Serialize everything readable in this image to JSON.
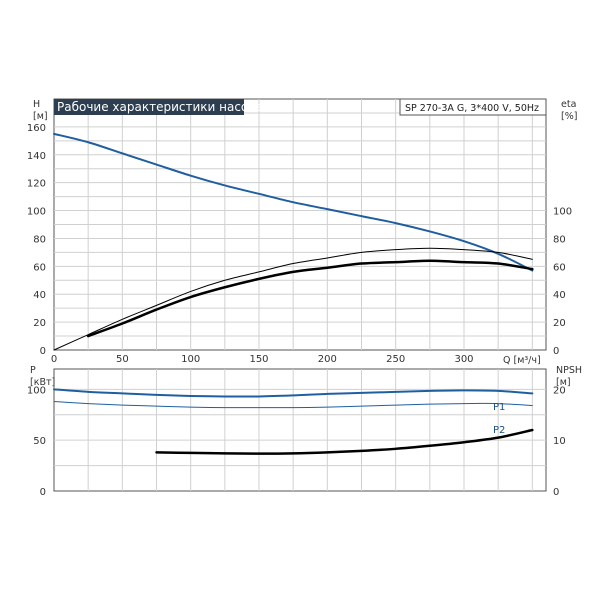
{
  "chart_data": [
    {
      "type": "line",
      "title": "Рабочие характеристики насоса",
      "subtitle": "SP 270-3A G, 3*400 V, 50Hz",
      "xlabel": "Q [м³/ч]",
      "ylabel": "H\n[м]",
      "y2label": "eta\n[%]",
      "xlim": [
        0,
        360
      ],
      "ylim": [
        0,
        180
      ],
      "y2lim": [
        0,
        180
      ],
      "x_ticks": [
        0,
        50,
        100,
        150,
        200,
        250,
        300
      ],
      "y_ticks": [
        0,
        20,
        40,
        60,
        80,
        100,
        120,
        140,
        160
      ],
      "y2_ticks": [
        0,
        20,
        40,
        60,
        80,
        100
      ],
      "grid": true,
      "series": [
        {
          "axis": "left",
          "color": "#1f5fa0",
          "width": 2,
          "x": [
            0,
            25,
            50,
            75,
            100,
            125,
            150,
            175,
            200,
            225,
            250,
            275,
            300,
            325,
            350
          ],
          "y": [
            155,
            149,
            141,
            133,
            125,
            118,
            112,
            106,
            101,
            96,
            91,
            85,
            78,
            69,
            57
          ]
        },
        {
          "axis": "right",
          "color": "#000000",
          "width": 1,
          "x": [
            0,
            25,
            50,
            75,
            100,
            125,
            150,
            175,
            200,
            225,
            250,
            275,
            300,
            325,
            350
          ],
          "y": [
            0,
            11,
            22,
            32,
            42,
            50,
            56,
            62,
            66,
            70,
            72,
            73,
            72,
            70,
            65
          ]
        },
        {
          "axis": "right",
          "color": "#000000",
          "width": 2.5,
          "x": [
            25,
            50,
            75,
            100,
            125,
            150,
            175,
            200,
            225,
            250,
            275,
            300,
            325,
            350
          ],
          "y": [
            10,
            19,
            29,
            38,
            45,
            51,
            56,
            59,
            62,
            63,
            64,
            63,
            62,
            58
          ]
        }
      ]
    },
    {
      "type": "line",
      "xlim": [
        0,
        360
      ],
      "ylabel": "P\n[кВт]",
      "y2label": "NPSH\n[м]",
      "ylim": [
        0,
        120
      ],
      "y2lim": [
        0,
        24
      ],
      "y_ticks": [
        0,
        50,
        100
      ],
      "y2_ticks": [
        0,
        10,
        20
      ],
      "grid": true,
      "series": [
        {
          "name": "P1",
          "axis": "left",
          "color": "#1f5fa0",
          "width": 2,
          "x": [
            0,
            25,
            50,
            75,
            100,
            125,
            150,
            175,
            200,
            225,
            250,
            275,
            300,
            325,
            350
          ],
          "y": [
            100,
            97.5,
            96,
            94.5,
            93.5,
            93,
            93,
            94,
            95.5,
            96.5,
            97.5,
            98.5,
            99,
            98.5,
            96
          ]
        },
        {
          "name": "P2",
          "axis": "left",
          "color": "#1f5fa0",
          "width": 1,
          "x": [
            0,
            25,
            50,
            75,
            100,
            125,
            150,
            175,
            200,
            225,
            250,
            275,
            300,
            325,
            350
          ],
          "y": [
            88,
            86,
            84.5,
            83.5,
            82.5,
            82,
            82,
            82,
            82.5,
            83.5,
            84.5,
            85.5,
            86,
            86,
            84
          ]
        },
        {
          "axis": "right",
          "color": "#000000",
          "width": 2.5,
          "x": [
            75,
            100,
            125,
            150,
            175,
            200,
            225,
            250,
            275,
            300,
            325,
            350
          ],
          "y": [
            7.6,
            7.5,
            7.4,
            7.35,
            7.4,
            7.6,
            7.9,
            8.3,
            8.9,
            9.6,
            10.5,
            12
          ]
        }
      ]
    }
  ]
}
